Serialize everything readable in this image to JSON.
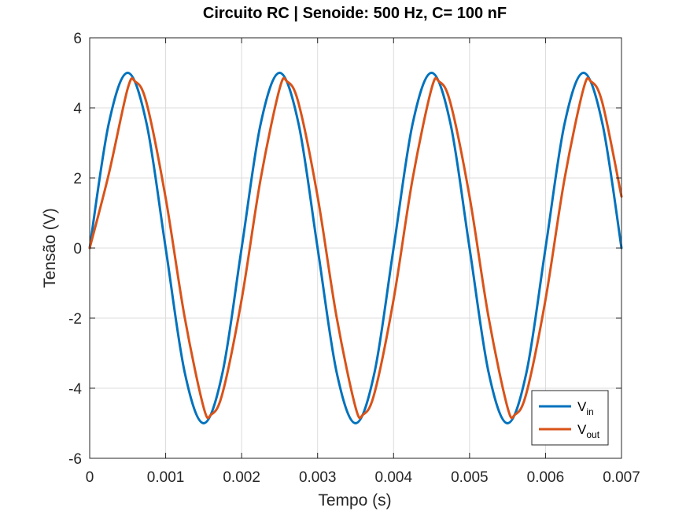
{
  "chart_data": {
    "type": "line",
    "title": "Circuito RC | Senoide: 500 Hz, C= 100 nF",
    "xlabel": "Tempo (s)",
    "ylabel": "Tensão (V)",
    "xlim": [
      0,
      0.007
    ],
    "ylim": [
      -6,
      6
    ],
    "xticks": [
      "0",
      "0.001",
      "0.002",
      "0.003",
      "0.004",
      "0.005",
      "0.006",
      "0.007"
    ],
    "xtick_values": [
      0,
      0.001,
      0.002,
      0.003,
      0.004,
      0.005,
      0.006,
      0.007
    ],
    "yticks": [
      "-6",
      "-4",
      "-2",
      "0",
      "2",
      "4",
      "6"
    ],
    "ytick_values": [
      -6,
      -4,
      -2,
      0,
      2,
      4,
      6
    ],
    "grid": true,
    "legend_position": "bottom-right",
    "series": [
      {
        "name": "V_in",
        "legend_main": "V",
        "legend_sub": "in",
        "color": "#0072BD",
        "x": [
          0,
          0.00025,
          0.0005,
          0.00075,
          0.001,
          0.00125,
          0.0015,
          0.00175,
          0.002,
          0.00225,
          0.0025,
          0.00275,
          0.003,
          0.00325,
          0.0035,
          0.00375,
          0.004,
          0.00425,
          0.0045,
          0.00475,
          0.005,
          0.00525,
          0.0055,
          0.00575,
          0.006,
          0.00625,
          0.0065,
          0.00675,
          0.007
        ],
        "y": [
          0,
          3.54,
          5,
          3.54,
          0,
          -3.54,
          -5,
          -3.54,
          0,
          3.54,
          5,
          3.54,
          0,
          -3.54,
          -5,
          -3.54,
          0,
          3.54,
          5,
          3.54,
          0,
          -3.54,
          -5,
          -3.54,
          0,
          3.54,
          5,
          3.54,
          0
        ]
      },
      {
        "name": "V_out",
        "legend_main": "V",
        "legend_sub": "out",
        "color": "#D95319",
        "x": [
          0,
          0.00025,
          0.0005,
          0.0006,
          0.00075,
          0.001,
          0.00125,
          0.0015,
          0.0016,
          0.00175,
          0.002,
          0.00225,
          0.0025,
          0.0026,
          0.00275,
          0.003,
          0.00325,
          0.0035,
          0.0036,
          0.00375,
          0.004,
          0.00425,
          0.0045,
          0.0046,
          0.00475,
          0.005,
          0.00525,
          0.0055,
          0.0056,
          0.00575,
          0.006,
          0.00625,
          0.0065,
          0.0066,
          0.00675,
          0.007
        ],
        "y": [
          0,
          2.1,
          4.55,
          4.75,
          4.13,
          1.43,
          -1.97,
          -4.55,
          -4.75,
          -4.13,
          -1.47,
          1.97,
          4.55,
          4.75,
          4.13,
          1.47,
          -1.97,
          -4.55,
          -4.75,
          -4.13,
          -1.47,
          1.97,
          4.55,
          4.75,
          4.13,
          1.47,
          -1.97,
          -4.55,
          -4.75,
          -4.13,
          -1.47,
          1.97,
          4.55,
          4.75,
          4.13,
          1.47
        ]
      }
    ]
  }
}
